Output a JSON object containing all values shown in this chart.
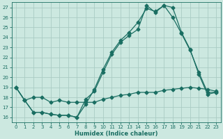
{
  "xlabel": "Humidex (Indice chaleur)",
  "bg_color": "#cce8e0",
  "grid_color": "#aaccc4",
  "line_color": "#1a6e62",
  "xlim": [
    -0.5,
    23.5
  ],
  "ylim": [
    15.5,
    27.5
  ],
  "xticks": [
    0,
    1,
    2,
    3,
    4,
    5,
    6,
    7,
    8,
    9,
    10,
    11,
    12,
    13,
    14,
    15,
    16,
    17,
    18,
    19,
    20,
    21,
    22,
    23
  ],
  "yticks": [
    16,
    17,
    18,
    19,
    20,
    21,
    22,
    23,
    24,
    25,
    26,
    27
  ],
  "series1_x": [
    0,
    1,
    2,
    3,
    4,
    5,
    6,
    7,
    8,
    9,
    10,
    11,
    12,
    13,
    14,
    15,
    16,
    17,
    18,
    19,
    20,
    21,
    22,
    23
  ],
  "series1_y": [
    19,
    17.7,
    16.5,
    16.5,
    16.3,
    16.2,
    16.2,
    16.0,
    17.8,
    18.6,
    20.5,
    22.3,
    23.5,
    24.2,
    24.8,
    27.2,
    26.5,
    27.2,
    26.0,
    24.4,
    22.7,
    20.5,
    18.5,
    18.5
  ],
  "series2_x": [
    0,
    1,
    2,
    3,
    4,
    5,
    6,
    7,
    8,
    9,
    10,
    11,
    12,
    13,
    14,
    15,
    16,
    17,
    18,
    19,
    20,
    21,
    22,
    23
  ],
  "series2_y": [
    19,
    17.7,
    16.5,
    16.5,
    16.3,
    16.2,
    16.2,
    16.0,
    17.3,
    18.8,
    20.8,
    22.5,
    23.7,
    24.5,
    25.5,
    26.9,
    26.6,
    27.2,
    27.0,
    24.5,
    22.8,
    20.3,
    18.3,
    18.5
  ],
  "series3_x": [
    0,
    1,
    2,
    3,
    4,
    5,
    6,
    7,
    8,
    9,
    10,
    11,
    12,
    13,
    14,
    15,
    16,
    17,
    18,
    19,
    20,
    21,
    22,
    23
  ],
  "series3_y": [
    19,
    17.7,
    18.0,
    18.0,
    17.5,
    17.7,
    17.5,
    17.5,
    17.5,
    17.5,
    17.8,
    18.0,
    18.2,
    18.3,
    18.5,
    18.5,
    18.5,
    18.7,
    18.8,
    18.9,
    19.0,
    18.9,
    18.8,
    18.6
  ]
}
